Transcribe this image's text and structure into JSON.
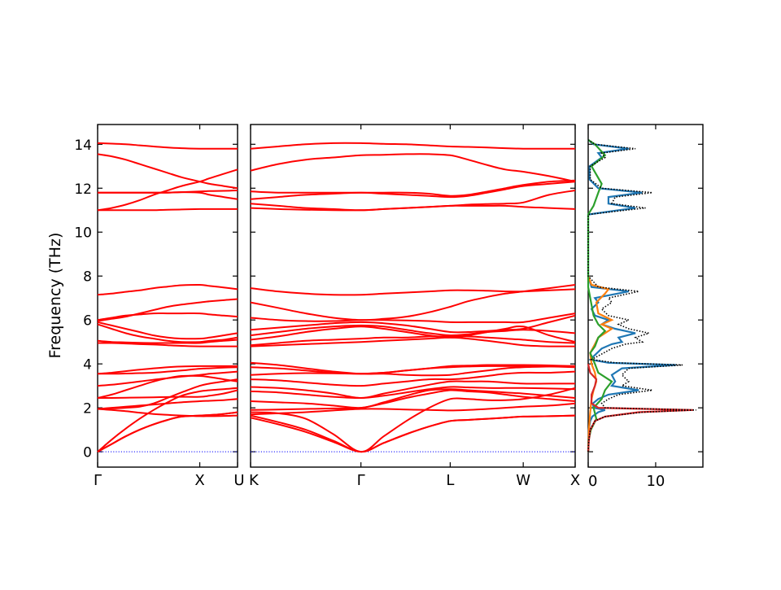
{
  "chart_data": [
    {
      "type": "line",
      "panel": "band-structure-gamma-x-u",
      "ylabel": "Frequency (THz)",
      "ylim": [
        -0.7,
        14.9
      ],
      "yticks": [
        0,
        2,
        4,
        6,
        8,
        10,
        12,
        14
      ],
      "x_tick_labels": [
        "Γ",
        "X",
        "U"
      ],
      "x_tick_positions": [
        0,
        0.73,
        1.0
      ],
      "band_color": "#ff0000",
      "zero_line_color": "#0000ff",
      "zero_line_style": "dotted",
      "grid": false,
      "series_x": [
        0,
        0.1,
        0.2,
        0.3,
        0.4,
        0.5,
        0.6,
        0.73,
        0.8,
        0.9,
        1.0
      ],
      "bands": [
        [
          0,
          0.35,
          0.7,
          1.0,
          1.25,
          1.45,
          1.6,
          1.65,
          1.67,
          1.72,
          1.8
        ],
        [
          0,
          0.35,
          0.7,
          1.0,
          1.25,
          1.45,
          1.6,
          1.65,
          1.67,
          1.72,
          1.8
        ],
        [
          0,
          0.55,
          1.05,
          1.5,
          1.9,
          2.25,
          2.55,
          2.75,
          2.8,
          2.85,
          2.9
        ],
        [
          1.95,
          1.9,
          1.85,
          1.78,
          1.72,
          1.68,
          1.65,
          1.62,
          1.62,
          1.63,
          1.65
        ],
        [
          1.95,
          2.0,
          2.05,
          2.1,
          2.15,
          2.2,
          2.25,
          2.3,
          2.32,
          2.35,
          2.4
        ],
        [
          1.95,
          1.97,
          2.0,
          2.05,
          2.2,
          2.45,
          2.7,
          3.0,
          3.1,
          3.2,
          3.3
        ],
        [
          2.45,
          2.45,
          2.46,
          2.47,
          2.48,
          2.49,
          2.5,
          2.5,
          2.55,
          2.65,
          2.8
        ],
        [
          2.45,
          2.6,
          2.8,
          3.0,
          3.2,
          3.35,
          3.45,
          3.45,
          3.4,
          3.3,
          3.2
        ],
        [
          3.0,
          3.05,
          3.12,
          3.2,
          3.28,
          3.35,
          3.42,
          3.5,
          3.55,
          3.6,
          3.65
        ],
        [
          3.55,
          3.6,
          3.67,
          3.74,
          3.8,
          3.85,
          3.88,
          3.9,
          3.9,
          3.9,
          3.9
        ],
        [
          3.55,
          3.55,
          3.56,
          3.58,
          3.6,
          3.65,
          3.7,
          3.78,
          3.8,
          3.83,
          3.85
        ],
        [
          4.95,
          4.95,
          4.93,
          4.9,
          4.88,
          4.85,
          4.82,
          4.8,
          4.8,
          4.8,
          4.8
        ],
        [
          5.05,
          5.0,
          4.98,
          4.96,
          4.95,
          4.95,
          4.95,
          4.95,
          5.0,
          5.05,
          5.1
        ],
        [
          5.8,
          5.6,
          5.4,
          5.25,
          5.15,
          5.05,
          5.0,
          5.0,
          5.05,
          5.1,
          5.2
        ],
        [
          5.9,
          5.75,
          5.6,
          5.45,
          5.3,
          5.2,
          5.15,
          5.15,
          5.2,
          5.3,
          5.4
        ],
        [
          6.0,
          6.1,
          6.2,
          6.25,
          6.3,
          6.3,
          6.3,
          6.3,
          6.25,
          6.2,
          6.15
        ],
        [
          5.95,
          6.05,
          6.15,
          6.3,
          6.45,
          6.6,
          6.7,
          6.8,
          6.85,
          6.9,
          6.95
        ],
        [
          7.15,
          7.2,
          7.28,
          7.35,
          7.45,
          7.52,
          7.58,
          7.6,
          7.55,
          7.48,
          7.4
        ],
        [
          11.0,
          11.0,
          11.0,
          11.0,
          11.0,
          11.02,
          11.03,
          11.05,
          11.05,
          11.05,
          11.05
        ],
        [
          11.0,
          11.1,
          11.25,
          11.45,
          11.7,
          11.9,
          12.1,
          12.3,
          12.45,
          12.65,
          12.85
        ],
        [
          11.8,
          11.8,
          11.8,
          11.8,
          11.8,
          11.8,
          11.82,
          11.85,
          11.87,
          11.88,
          11.9
        ],
        [
          11.8,
          11.8,
          11.8,
          11.8,
          11.8,
          11.8,
          11.82,
          11.8,
          11.7,
          11.6,
          11.5
        ],
        [
          13.55,
          13.45,
          13.3,
          13.1,
          12.9,
          12.7,
          12.5,
          12.3,
          12.2,
          12.1,
          12.0
        ],
        [
          14.05,
          14.03,
          14.0,
          13.95,
          13.9,
          13.85,
          13.82,
          13.8,
          13.8,
          13.8,
          13.8
        ]
      ]
    },
    {
      "type": "line",
      "panel": "band-structure-k-gamma-l-w-x",
      "ylim": [
        -0.7,
        14.9
      ],
      "x_tick_labels": [
        "K",
        "Γ",
        "L",
        "W",
        "X"
      ],
      "x_tick_positions": [
        0,
        0.34,
        0.615,
        0.84,
        1.0
      ],
      "band_color": "#ff0000",
      "zero_line_color": "#0000ff",
      "zero_line_style": "dotted",
      "grid": false,
      "series_x": [
        0,
        0.085,
        0.17,
        0.255,
        0.34,
        0.41,
        0.48,
        0.55,
        0.615,
        0.67,
        0.73,
        0.785,
        0.84,
        0.92,
        1.0
      ],
      "bands": [
        [
          1.55,
          1.25,
          0.9,
          0.45,
          0,
          0.4,
          0.8,
          1.15,
          1.4,
          1.45,
          1.5,
          1.55,
          1.6,
          1.62,
          1.65
        ],
        [
          1.65,
          1.35,
          1.0,
          0.5,
          0,
          0.4,
          0.8,
          1.15,
          1.4,
          1.45,
          1.5,
          1.55,
          1.6,
          1.62,
          1.65
        ],
        [
          1.8,
          1.75,
          1.5,
          0.8,
          0,
          0.7,
          1.4,
          2.0,
          2.4,
          2.4,
          2.35,
          2.35,
          2.4,
          2.6,
          2.9
        ],
        [
          1.7,
          1.75,
          1.8,
          1.88,
          1.95,
          1.95,
          1.92,
          1.9,
          1.88,
          1.9,
          1.95,
          2.0,
          2.05,
          2.1,
          2.2
        ],
        [
          1.9,
          1.92,
          1.95,
          1.97,
          2.0,
          2.2,
          2.45,
          2.65,
          2.8,
          2.75,
          2.7,
          2.6,
          2.5,
          2.4,
          2.3
        ],
        [
          2.3,
          2.25,
          2.2,
          2.1,
          2.0,
          2.25,
          2.55,
          2.8,
          2.85,
          2.8,
          2.75,
          2.7,
          2.65,
          2.55,
          2.45
        ],
        [
          2.75,
          2.7,
          2.6,
          2.5,
          2.45,
          2.55,
          2.7,
          2.85,
          2.95,
          2.93,
          2.9,
          2.9,
          2.9,
          2.88,
          2.85
        ],
        [
          2.95,
          2.9,
          2.8,
          2.65,
          2.45,
          2.65,
          2.85,
          3.05,
          3.2,
          3.2,
          3.2,
          3.15,
          3.1,
          3.1,
          3.1
        ],
        [
          3.3,
          3.25,
          3.15,
          3.05,
          3.0,
          3.1,
          3.2,
          3.3,
          3.3,
          3.35,
          3.45,
          3.55,
          3.6,
          3.6,
          3.65
        ],
        [
          3.5,
          3.55,
          3.58,
          3.57,
          3.55,
          3.6,
          3.7,
          3.8,
          3.85,
          3.88,
          3.9,
          3.9,
          3.9,
          3.88,
          3.85
        ],
        [
          3.85,
          3.8,
          3.7,
          3.6,
          3.55,
          3.6,
          3.7,
          3.8,
          3.9,
          3.92,
          3.95,
          3.95,
          3.95,
          3.93,
          3.9
        ],
        [
          4.05,
          3.95,
          3.8,
          3.65,
          3.55,
          3.55,
          3.5,
          3.48,
          3.5,
          3.6,
          3.7,
          3.8,
          3.85,
          3.88,
          3.9
        ],
        [
          4.8,
          4.85,
          4.9,
          4.95,
          5.0,
          5.05,
          5.1,
          5.15,
          5.2,
          5.15,
          5.05,
          4.95,
          4.85,
          4.8,
          4.8
        ],
        [
          4.85,
          4.95,
          5.05,
          5.1,
          5.15,
          5.2,
          5.2,
          5.25,
          5.25,
          5.25,
          5.2,
          5.15,
          5.1,
          5.0,
          4.95
        ],
        [
          5.1,
          5.25,
          5.45,
          5.6,
          5.7,
          5.6,
          5.45,
          5.3,
          5.2,
          5.3,
          5.45,
          5.6,
          5.7,
          5.3,
          5.0
        ],
        [
          5.3,
          5.45,
          5.6,
          5.7,
          5.75,
          5.7,
          5.55,
          5.4,
          5.3,
          5.35,
          5.45,
          5.5,
          5.55,
          5.5,
          5.4
        ],
        [
          5.55,
          5.65,
          5.75,
          5.85,
          5.9,
          5.85,
          5.75,
          5.6,
          5.45,
          5.45,
          5.5,
          5.55,
          5.6,
          5.9,
          6.2
        ],
        [
          6.1,
          6.0,
          5.95,
          5.95,
          6.0,
          6.0,
          5.98,
          5.95,
          5.9,
          5.9,
          5.9,
          5.9,
          5.9,
          6.1,
          6.3
        ],
        [
          6.8,
          6.55,
          6.3,
          6.1,
          6.0,
          6.05,
          6.15,
          6.35,
          6.6,
          6.85,
          7.05,
          7.2,
          7.3,
          7.45,
          7.6
        ],
        [
          7.45,
          7.3,
          7.2,
          7.15,
          7.15,
          7.2,
          7.25,
          7.3,
          7.35,
          7.35,
          7.33,
          7.3,
          7.3,
          7.35,
          7.4
        ],
        [
          11.1,
          11.05,
          11.02,
          11.0,
          11.0,
          11.05,
          11.1,
          11.15,
          11.2,
          11.2,
          11.2,
          11.2,
          11.15,
          11.1,
          11.05
        ],
        [
          11.3,
          11.2,
          11.1,
          11.05,
          11.0,
          11.05,
          11.1,
          11.15,
          11.2,
          11.25,
          11.28,
          11.3,
          11.35,
          11.7,
          11.9
        ],
        [
          11.5,
          11.6,
          11.7,
          11.75,
          11.8,
          11.75,
          11.7,
          11.65,
          11.6,
          11.65,
          11.8,
          11.95,
          12.1,
          12.2,
          12.3
        ],
        [
          11.85,
          11.8,
          11.8,
          11.8,
          11.8,
          11.8,
          11.8,
          11.75,
          11.65,
          11.7,
          11.85,
          12.0,
          12.15,
          12.3,
          12.35
        ],
        [
          12.8,
          13.1,
          13.3,
          13.4,
          13.5,
          13.52,
          13.55,
          13.55,
          13.5,
          13.3,
          13.05,
          12.85,
          12.75,
          12.55,
          12.3
        ],
        [
          13.8,
          13.9,
          14.0,
          14.05,
          14.05,
          14.02,
          14.0,
          13.95,
          13.9,
          13.88,
          13.85,
          13.82,
          13.8,
          13.8,
          13.8
        ]
      ]
    },
    {
      "type": "line",
      "panel": "density-of-states",
      "orientation": "horizontal",
      "xlim": [
        0,
        17
      ],
      "xticks": [
        0,
        10
      ],
      "ylim": [
        -0.7,
        14.9
      ],
      "grid": false,
      "series": [
        {
          "color": "#000000",
          "style": "dotted",
          "freq": [
            0,
            0.5,
            1.0,
            1.4,
            1.6,
            1.8,
            1.9,
            2.0,
            2.2,
            2.4,
            2.6,
            2.8,
            3.0,
            3.2,
            3.5,
            3.8,
            3.95,
            4.05,
            4.2,
            4.7,
            4.9,
            5.0,
            5.2,
            5.4,
            5.6,
            5.8,
            6.0,
            6.2,
            6.5,
            6.8,
            7.0,
            7.3,
            7.5,
            8.0,
            10.8,
            11.0,
            11.1,
            11.3,
            11.6,
            11.8,
            12.0,
            12.4,
            13.0,
            13.4,
            13.6,
            13.8,
            14.0,
            14.2
          ],
          "dos": [
            0,
            0.1,
            0.3,
            1.0,
            2.5,
            8.0,
            16.0,
            2.5,
            2.0,
            3.0,
            4.5,
            9.5,
            5.0,
            6.0,
            5.0,
            6.0,
            14.0,
            4.0,
            0.5,
            3.5,
            5.5,
            8.0,
            7.0,
            9.0,
            6.0,
            4.5,
            6.0,
            3.0,
            2.0,
            3.5,
            3.0,
            7.5,
            1.5,
            0,
            0,
            5.5,
            8.5,
            3.5,
            4.0,
            9.5,
            2.0,
            0.3,
            0.3,
            2.5,
            2.0,
            7.0,
            1.0,
            0
          ]
        },
        {
          "color": "#1f77b4",
          "style": "solid",
          "freq": [
            0,
            0.5,
            1.0,
            1.4,
            1.6,
            1.8,
            1.9,
            2.0,
            2.2,
            2.4,
            2.6,
            2.8,
            3.0,
            3.2,
            3.5,
            3.8,
            3.95,
            4.05,
            4.2,
            4.7,
            4.9,
            5.0,
            5.2,
            5.4,
            5.6,
            5.8,
            6.0,
            6.2,
            6.5,
            6.8,
            7.0,
            7.3,
            7.5,
            8.0,
            10.8,
            11.0,
            11.1,
            11.3,
            11.6,
            11.8,
            12.0,
            12.4,
            13.0,
            13.4,
            13.6,
            13.8,
            14.0,
            14.2
          ],
          "dos": [
            0,
            0.05,
            0.1,
            0.3,
            0.6,
            1.5,
            2.5,
            0.8,
            0.7,
            1.5,
            3.0,
            7.5,
            3.5,
            4.0,
            3.5,
            5.0,
            13.0,
            3.0,
            0.3,
            2.0,
            3.5,
            5.0,
            4.5,
            7.0,
            4.0,
            2.0,
            3.0,
            1.0,
            0.5,
            1.5,
            1.0,
            6.0,
            0.5,
            0,
            0,
            4.5,
            7.0,
            3.0,
            3.0,
            8.0,
            1.5,
            0.2,
            0.2,
            2.0,
            1.5,
            6.0,
            0.8,
            0
          ]
        },
        {
          "color": "#ff7f0e",
          "style": "solid",
          "freq": [
            0,
            1.0,
            1.8,
            2.4,
            2.8,
            3.2,
            3.6,
            4.0,
            4.5,
            4.9,
            5.2,
            5.6,
            5.8,
            6.0,
            6.3,
            6.8,
            7.2,
            7.4,
            7.6,
            8.0
          ],
          "dos": [
            0,
            0.1,
            0.3,
            0.5,
            0.8,
            1.2,
            1.0,
            0.5,
            0.3,
            1.0,
            1.5,
            3.5,
            2.0,
            3.5,
            1.5,
            1.2,
            2.5,
            3.0,
            0.5,
            0
          ]
        },
        {
          "color": "#2ca02c",
          "style": "solid",
          "freq": [
            0,
            0.5,
            1.0,
            1.5,
            2.0,
            2.4,
            2.8,
            3.2,
            3.6,
            4.0,
            4.5,
            4.8,
            5.2,
            5.5,
            5.8,
            6.2,
            7.0,
            7.5,
            10.8,
            11.2,
            11.8,
            12.2,
            13.0,
            13.5,
            14.0,
            14.2
          ],
          "dos": [
            0,
            0.05,
            0.4,
            1.2,
            0.8,
            2.0,
            2.5,
            3.5,
            1.5,
            1.0,
            0.3,
            1.0,
            1.5,
            2.5,
            1.5,
            0.8,
            0.3,
            0,
            0,
            0.8,
            1.5,
            2.0,
            0.5,
            2.5,
            1.0,
            0
          ]
        },
        {
          "color": "#d62728",
          "style": "solid",
          "freq": [
            0,
            0.5,
            1.0,
            1.4,
            1.6,
            1.8,
            1.9,
            2.0,
            2.2,
            2.6,
            3.0,
            3.3,
            3.6,
            4.0
          ],
          "dos": [
            0,
            0.1,
            0.3,
            1.0,
            2.5,
            7.5,
            15.5,
            1.5,
            0.5,
            0.5,
            1.0,
            1.2,
            0.3,
            0
          ]
        }
      ]
    }
  ]
}
